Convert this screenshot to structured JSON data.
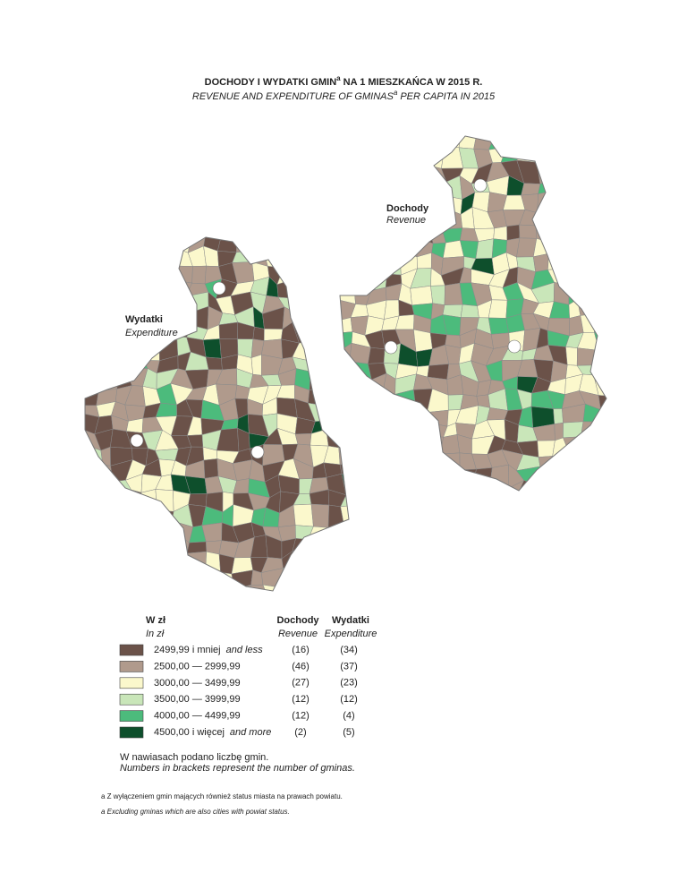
{
  "title": {
    "text": "DOCHODY I WYDATKI GMIN",
    "sup": "a",
    "rest": " NA 1 MIESZKAŃCA W 2015 R."
  },
  "subtitle": {
    "text": "REVENUE AND EXPENDITURE OF GMINAS",
    "sup": "a",
    "rest": " PER CAPITA IN 2015"
  },
  "maps": [
    {
      "label": "Dochody",
      "label_en": "Revenue"
    },
    {
      "label": "Wydatki",
      "label_en": "Expenditure"
    }
  ],
  "legend": {
    "unit": "W zł",
    "unit_en": "In zł",
    "columns": [
      {
        "label": "Dochody",
        "label_en": "Revenue"
      },
      {
        "label": "Wydatki",
        "label_en": "Expenditure"
      }
    ],
    "classes": [
      {
        "color": "#6b5249",
        "label": "2499,99 i mniej",
        "label_en": "and less",
        "revenue": "(16)",
        "expenditure": "(34)"
      },
      {
        "color": "#b09a8c",
        "label": "2500,00 — 2999,99",
        "revenue": "(46)",
        "expenditure": "(37)"
      },
      {
        "color": "#fbf8cc",
        "label": "3000,00 — 3499,99",
        "revenue": "(27)",
        "expenditure": "(23)"
      },
      {
        "color": "#c9e6b9",
        "label": "3500,00 — 3999,99",
        "revenue": "(12)",
        "expenditure": "(12)"
      },
      {
        "color": "#4cbb7c",
        "label": "4000,00 — 4499,99",
        "revenue": "(12)",
        "expenditure": "(4)"
      },
      {
        "color": "#0e4f2c",
        "label": "4500,00 i więcej",
        "label_en": "and more",
        "revenue": "(2)",
        "expenditure": "(5)"
      }
    ]
  },
  "note": "W nawiasach podano liczbę gmin.",
  "note_en": "Numbers in brackets represent the number of gminas.",
  "footnotes": [
    "a Z wyłączeniem gmin mających również status miasta na prawach powiatu.",
    "a Excluding gminas which are also cities with powiat status."
  ]
}
